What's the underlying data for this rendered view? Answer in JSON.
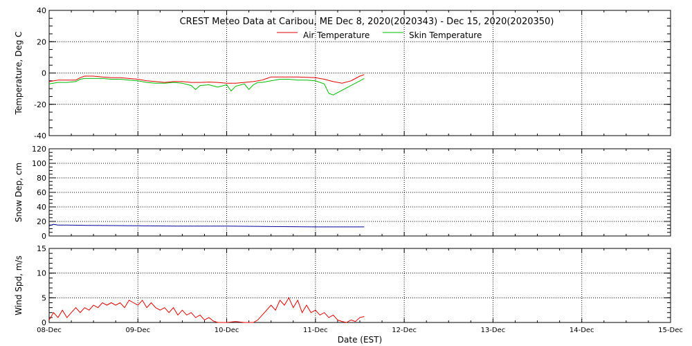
{
  "title": "CREST Meteo Data at Caribou, ME   Dec  8, 2020(2020343) - Dec 15, 2020(2020350)",
  "xlabel": "Date (EST)",
  "colors": {
    "air": "#e00000",
    "skin": "#00bb00",
    "snow": "#000099",
    "wind": "#e00000"
  },
  "chart_data": [
    {
      "type": "line",
      "ylabel": "Temperature, Deg C",
      "ylim": [
        -40,
        40
      ],
      "yticks": [
        "-40",
        "-20",
        "0",
        "20",
        "40"
      ],
      "x_categories": [
        "08-Dec",
        "09-Dec",
        "10-Dec",
        "11-Dec",
        "12-Dec",
        "13-Dec",
        "14-Dec",
        "15-Dec"
      ],
      "grid": true,
      "legend": "top-center",
      "series": [
        {
          "name": "Air Temperature",
          "color_key": "air",
          "x_days": [
            0,
            0.1,
            0.2,
            0.3,
            0.35,
            0.4,
            0.5,
            0.6,
            0.7,
            0.8,
            0.9,
            1.0,
            1.1,
            1.2,
            1.3,
            1.4,
            1.5,
            1.6,
            1.7,
            1.8,
            1.9,
            2.0,
            2.1,
            2.2,
            2.3,
            2.4,
            2.5,
            2.6,
            2.7,
            2.8,
            2.9,
            3.0,
            3.1,
            3.2,
            3.3,
            3.4,
            3.5,
            3.55
          ],
          "y": [
            -5.5,
            -4.5,
            -4.5,
            -4.5,
            -3,
            -2,
            -2,
            -2.5,
            -3,
            -3,
            -3.5,
            -4,
            -5,
            -5.5,
            -6,
            -5.5,
            -5.5,
            -6,
            -6,
            -5.8,
            -6,
            -6.5,
            -6.5,
            -6,
            -5.5,
            -4.5,
            -2.5,
            -2.5,
            -2.5,
            -2.5,
            -2.8,
            -3,
            -4,
            -5.5,
            -6.5,
            -5,
            -2,
            -1
          ]
        },
        {
          "name": "Skin Temperature",
          "color_key": "skin",
          "x_days": [
            0,
            0.1,
            0.2,
            0.3,
            0.35,
            0.4,
            0.5,
            0.6,
            0.7,
            0.8,
            0.9,
            1.0,
            1.1,
            1.2,
            1.3,
            1.4,
            1.5,
            1.6,
            1.65,
            1.7,
            1.8,
            1.9,
            2.0,
            2.05,
            2.1,
            2.2,
            2.25,
            2.3,
            2.35,
            2.4,
            2.5,
            2.6,
            2.7,
            2.8,
            2.9,
            3.0,
            3.1,
            3.15,
            3.2,
            3.3,
            3.4,
            3.5,
            3.55
          ],
          "y": [
            -7,
            -6,
            -6,
            -5.5,
            -4,
            -3.5,
            -3.5,
            -3.5,
            -4,
            -4,
            -4.5,
            -5,
            -6,
            -6.5,
            -6.5,
            -6,
            -6.5,
            -8,
            -10.5,
            -8,
            -7.5,
            -9,
            -7.5,
            -11.5,
            -8.5,
            -7,
            -10.5,
            -7.5,
            -6,
            -6,
            -5,
            -4,
            -4,
            -4.5,
            -4.5,
            -5,
            -7,
            -13,
            -14,
            -11,
            -8,
            -5,
            -3.5
          ]
        }
      ]
    },
    {
      "type": "line",
      "ylabel": "Snow Dep, cm",
      "ylim": [
        0,
        120
      ],
      "yticks": [
        "0",
        "20",
        "40",
        "60",
        "80",
        "100",
        "120"
      ],
      "x_categories": [
        "08-Dec",
        "09-Dec",
        "10-Dec",
        "11-Dec",
        "12-Dec",
        "13-Dec",
        "14-Dec",
        "15-Dec"
      ],
      "grid": true,
      "series": [
        {
          "color_key": "snow",
          "x_days": [
            0,
            0.05,
            0.1,
            0.2,
            0.5,
            1.0,
            1.5,
            2.0,
            2.5,
            3.0,
            3.55
          ],
          "y": [
            14,
            16,
            15,
            15,
            14.5,
            14,
            13.5,
            13.5,
            13,
            12.5,
            12.5
          ]
        }
      ]
    },
    {
      "type": "line",
      "ylabel": "Wind Spd, m/s",
      "ylim": [
        0,
        15
      ],
      "yticks": [
        "0",
        "5",
        "10",
        "15"
      ],
      "x_categories": [
        "08-Dec",
        "09-Dec",
        "10-Dec",
        "11-Dec",
        "12-Dec",
        "13-Dec",
        "14-Dec",
        "15-Dec"
      ],
      "grid": true,
      "series": [
        {
          "color_key": "wind",
          "x_days": [
            0,
            0.05,
            0.1,
            0.15,
            0.2,
            0.25,
            0.3,
            0.35,
            0.4,
            0.45,
            0.5,
            0.55,
            0.6,
            0.65,
            0.7,
            0.75,
            0.8,
            0.85,
            0.9,
            0.95,
            1.0,
            1.05,
            1.1,
            1.15,
            1.2,
            1.25,
            1.3,
            1.35,
            1.4,
            1.45,
            1.5,
            1.55,
            1.6,
            1.65,
            1.7,
            1.75,
            1.8,
            1.85,
            1.9,
            2.0,
            2.1,
            2.2,
            2.3,
            2.35,
            2.4,
            2.45,
            2.5,
            2.55,
            2.6,
            2.65,
            2.7,
            2.75,
            2.8,
            2.85,
            2.9,
            2.95,
            3.0,
            3.05,
            3.1,
            3.15,
            3.2,
            3.25,
            3.3,
            3.35,
            3.4,
            3.45,
            3.5,
            3.55
          ],
          "y": [
            0.5,
            2,
            1,
            2.5,
            1,
            2,
            3,
            2,
            3,
            2.5,
            3.5,
            3,
            4,
            3.5,
            4,
            3.5,
            4,
            3,
            4.5,
            4,
            3.5,
            4.5,
            3,
            4,
            3,
            2.5,
            3,
            2,
            3,
            1.5,
            2.5,
            1.5,
            2,
            1,
            1.5,
            0.5,
            1,
            0.3,
            0,
            0,
            0.2,
            0,
            0,
            0.5,
            1.5,
            2.5,
            3.5,
            2.5,
            4.5,
            3.5,
            5,
            3,
            4.5,
            2,
            3.5,
            2,
            2.5,
            1.5,
            2,
            1,
            1.5,
            0.5,
            0.2,
            0,
            0.5,
            0.2,
            1,
            1.2
          ]
        }
      ]
    }
  ]
}
